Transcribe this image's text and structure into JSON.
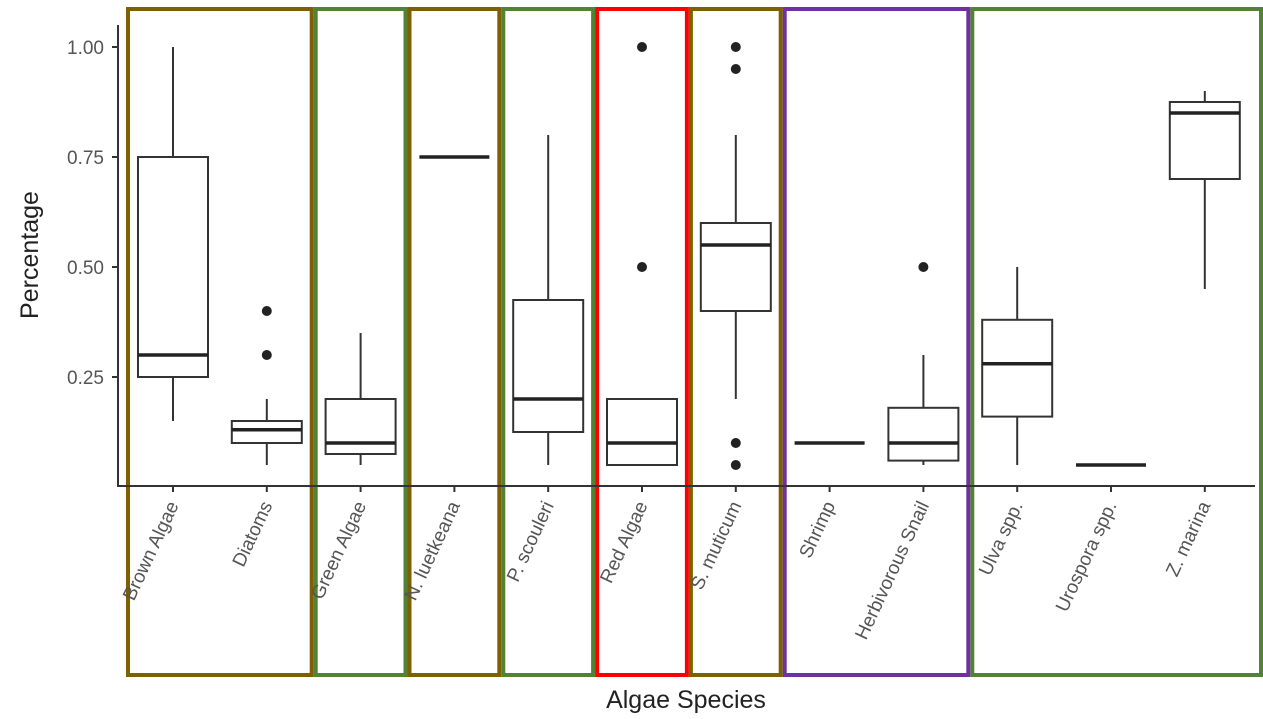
{
  "chart_data": {
    "type": "boxplot",
    "xlabel": "Algae Species",
    "ylabel": "Percentage",
    "ylim": [
      0,
      1.05
    ],
    "yticks": [
      "0.25",
      "0.50",
      "0.75",
      "1.00"
    ],
    "categories": [
      "Brown Algae",
      "Diatoms",
      "Green Algae",
      "N. luetkeana",
      "P. scouleri",
      "Red Algae",
      "S. muticum",
      "Shrimp",
      "Herbivorous Snail",
      "Ulva spp.",
      "Urospora spp.",
      "Z. marina"
    ],
    "boxes": [
      {
        "category": "Brown Algae",
        "min": 0.15,
        "q1": 0.25,
        "median": 0.3,
        "q3": 0.75,
        "max": 1.0,
        "outliers": []
      },
      {
        "category": "Diatoms",
        "min": 0.05,
        "q1": 0.1,
        "median": 0.13,
        "q3": 0.15,
        "max": 0.2,
        "outliers": [
          0.3,
          0.4
        ]
      },
      {
        "category": "Green Algae",
        "min": 0.05,
        "q1": 0.075,
        "median": 0.1,
        "q3": 0.2,
        "max": 0.35,
        "outliers": []
      },
      {
        "category": "N. luetkeana",
        "min": 0.75,
        "q1": 0.75,
        "median": 0.75,
        "q3": 0.75,
        "max": 0.75,
        "outliers": []
      },
      {
        "category": "P. scouleri",
        "min": 0.05,
        "q1": 0.125,
        "median": 0.2,
        "q3": 0.425,
        "max": 0.8,
        "outliers": []
      },
      {
        "category": "Red Algae",
        "min": 0.05,
        "q1": 0.05,
        "median": 0.1,
        "q3": 0.2,
        "max": 0.2,
        "outliers": [
          0.5,
          1.0
        ]
      },
      {
        "category": "S. muticum",
        "min": 0.2,
        "q1": 0.4,
        "median": 0.55,
        "q3": 0.6,
        "max": 0.8,
        "outliers": [
          0.05,
          0.1,
          0.95,
          1.0
        ]
      },
      {
        "category": "Shrimp",
        "min": 0.1,
        "q1": 0.1,
        "median": 0.1,
        "q3": 0.1,
        "max": 0.1,
        "outliers": []
      },
      {
        "category": "Herbivorous Snail",
        "min": 0.05,
        "q1": 0.06,
        "median": 0.1,
        "q3": 0.18,
        "max": 0.3,
        "outliers": [
          0.5
        ]
      },
      {
        "category": "Ulva spp.",
        "min": 0.05,
        "q1": 0.16,
        "median": 0.28,
        "q3": 0.38,
        "max": 0.5,
        "outliers": []
      },
      {
        "category": "Urospora spp.",
        "min": 0.05,
        "q1": 0.05,
        "median": 0.05,
        "q3": 0.05,
        "max": 0.05,
        "outliers": []
      },
      {
        "category": "Z. marina",
        "min": 0.45,
        "q1": 0.7,
        "median": 0.85,
        "q3": 0.875,
        "max": 0.9,
        "outliers": []
      }
    ],
    "groups": [
      {
        "categories": [
          "Brown Algae",
          "Diatoms"
        ],
        "color": "#7f6000"
      },
      {
        "categories": [
          "Green Algae"
        ],
        "color": "#548235"
      },
      {
        "categories": [
          "N. luetkeana"
        ],
        "color": "#7f6000"
      },
      {
        "categories": [
          "P. scouleri"
        ],
        "color": "#548235"
      },
      {
        "categories": [
          "Red Algae"
        ],
        "color": "#ff0000"
      },
      {
        "categories": [
          "S. muticum"
        ],
        "color": "#7f6000"
      },
      {
        "categories": [
          "Shrimp",
          "Herbivorous Snail"
        ],
        "color": "#7030a0"
      },
      {
        "categories": [
          "Ulva spp.",
          "Urospora spp.",
          "Z. marina"
        ],
        "color": "#548235"
      }
    ],
    "grid": false,
    "legend": "none"
  }
}
